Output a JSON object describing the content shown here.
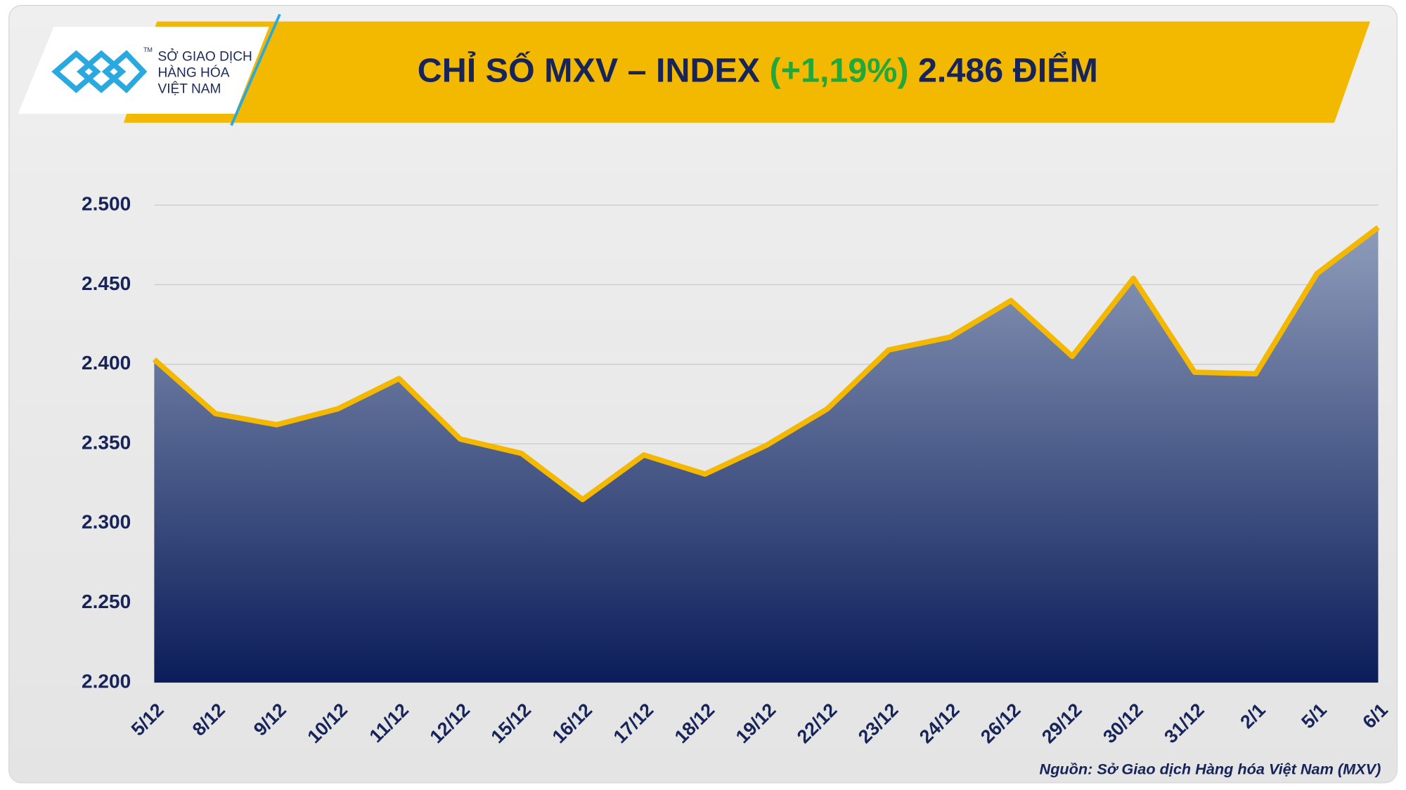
{
  "logo": {
    "mark": "TM",
    "lines": [
      "SỞ GIAO DỊCH",
      "HÀNG HÓA",
      "VIỆT NAM"
    ]
  },
  "chart_data": {
    "type": "area",
    "title": {
      "prefix": "CHỈ SỐ MXV – INDEX",
      "change": "(+1,19%)",
      "value": "2.486 ĐIỂM"
    },
    "categories": [
      "5/12",
      "8/12",
      "9/12",
      "10/12",
      "11/12",
      "12/12",
      "15/12",
      "16/12",
      "17/12",
      "18/12",
      "19/12",
      "22/12",
      "23/12",
      "24/12",
      "26/12",
      "29/12",
      "30/12",
      "31/12",
      "2/1",
      "5/1",
      "6/1"
    ],
    "values": [
      2403,
      2369,
      2362,
      2372,
      2391,
      2353,
      2344,
      2315,
      2343,
      2331,
      2349,
      2372,
      2409,
      2417,
      2440,
      2405,
      2454,
      2395,
      2394,
      2457,
      2486
    ],
    "ylim": [
      2200,
      2500
    ],
    "yticks": [
      {
        "value": 2200,
        "label": "2.200"
      },
      {
        "value": 2250,
        "label": "2.250"
      },
      {
        "value": 2300,
        "label": "2.300"
      },
      {
        "value": 2350,
        "label": "2.350"
      },
      {
        "value": 2400,
        "label": "2.400"
      },
      {
        "value": 2450,
        "label": "2.450"
      },
      {
        "value": 2500,
        "label": "2.500"
      }
    ],
    "grid": true,
    "line_color": "#f5b800",
    "area_top_color": "#8e9cba",
    "area_bottom_color": "#0b1d5a",
    "source": "Nguồn: Sở Giao dịch Hàng hóa Việt Nam (MXV)"
  }
}
